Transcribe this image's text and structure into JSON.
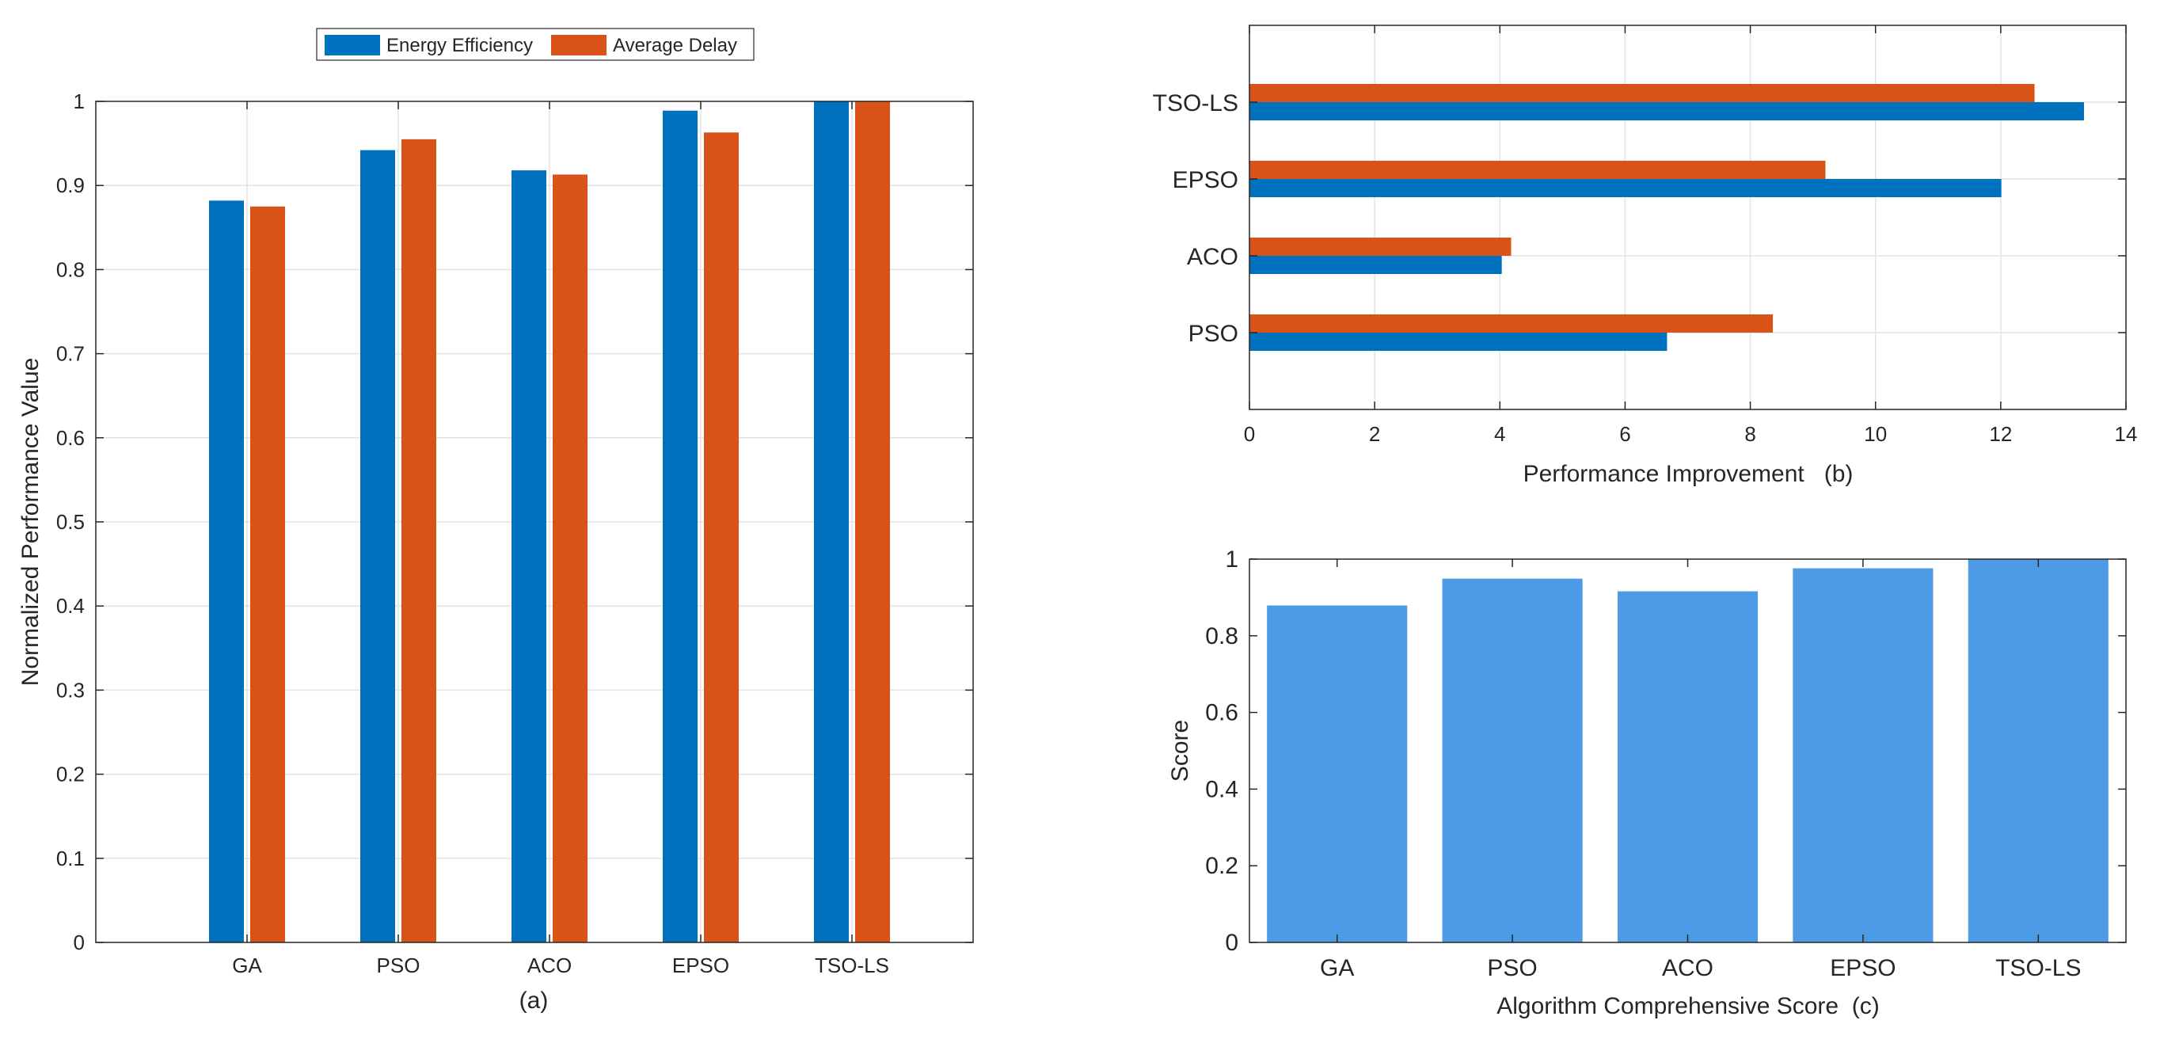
{
  "colors": {
    "energy": "#0072BD",
    "delay": "#D95319",
    "score": "#4D9BE6",
    "grid": "#E3E3E3",
    "axis": "#262626"
  },
  "chart_data": [
    {
      "id": "a",
      "type": "bar",
      "title": "",
      "xlabel": "(a)",
      "ylabel": "Normalized Performance Value",
      "categories": [
        "GA",
        "PSO",
        "ACO",
        "EPSO",
        "TSO-LS"
      ],
      "series": [
        {
          "name": "Energy Efficiency",
          "values": [
            0.882,
            0.942,
            0.918,
            0.989,
            1.0
          ]
        },
        {
          "name": "Average Delay",
          "values": [
            0.875,
            0.955,
            0.913,
            0.963,
            1.0
          ]
        }
      ],
      "ylim": [
        0,
        1
      ],
      "yticks": [
        "0",
        "0.1",
        "0.2",
        "0.3",
        "0.4",
        "0.5",
        "0.6",
        "0.7",
        "0.8",
        "0.9",
        "1"
      ],
      "legend": {
        "position": "top-center",
        "entries": [
          "Energy Efficiency",
          "Average Delay"
        ]
      },
      "grid": true
    },
    {
      "id": "b",
      "type": "bar",
      "orientation": "horizontal",
      "xlabel": "Performance Improvement   (b)",
      "ylabel": "",
      "categories": [
        "PSO",
        "ACO",
        "EPSO",
        "TSO-LS"
      ],
      "series": [
        {
          "name": "Energy Efficiency",
          "values": [
            6.67,
            4.03,
            12.01,
            13.33
          ]
        },
        {
          "name": "Average Delay",
          "values": [
            8.36,
            4.18,
            9.2,
            12.54
          ]
        }
      ],
      "xlim": [
        0,
        14
      ],
      "xticks": [
        "0",
        "2",
        "4",
        "6",
        "8",
        "10",
        "12",
        "14"
      ],
      "grid": true
    },
    {
      "id": "c",
      "type": "bar",
      "xlabel": "Algorithm Comprehensive Score  (c)",
      "ylabel": "Score",
      "categories": [
        "GA",
        "PSO",
        "ACO",
        "EPSO",
        "TSO-LS"
      ],
      "values": [
        0.879,
        0.949,
        0.916,
        0.976,
        1.0
      ],
      "ylim": [
        0,
        1
      ],
      "yticks": [
        "0",
        "0.2",
        "0.4",
        "0.6",
        "0.8",
        "1"
      ],
      "grid": false
    }
  ]
}
